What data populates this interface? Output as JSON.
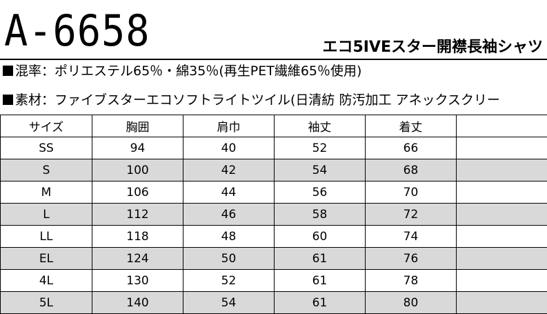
{
  "product": {
    "code": "A-6658",
    "name": "エコ5IVEスター開襟長袖シャツ"
  },
  "specs": {
    "blend": "■混率：ポリエステル65％・綿35％(再生PET繊維65％使用)",
    "material": "■素材：ファイブスターエコソフトライトツイル(日清紡 防汚加工 アネックスクリー"
  },
  "size_table": {
    "headers": [
      "サイズ",
      "胸囲",
      "肩巾",
      "袖丈",
      "着丈",
      ""
    ],
    "rows": [
      {
        "size": "SS",
        "chest": "94",
        "shoulder": "40",
        "sleeve": "52",
        "length": "66",
        "extra": "",
        "shaded": false
      },
      {
        "size": "S",
        "chest": "100",
        "shoulder": "42",
        "sleeve": "54",
        "length": "68",
        "extra": "",
        "shaded": true
      },
      {
        "size": "M",
        "chest": "106",
        "shoulder": "44",
        "sleeve": "56",
        "length": "70",
        "extra": "",
        "shaded": false
      },
      {
        "size": "L",
        "chest": "112",
        "shoulder": "46",
        "sleeve": "58",
        "length": "72",
        "extra": "",
        "shaded": true
      },
      {
        "size": "LL",
        "chest": "118",
        "shoulder": "48",
        "sleeve": "60",
        "length": "74",
        "extra": "",
        "shaded": false
      },
      {
        "size": "EL",
        "chest": "124",
        "shoulder": "50",
        "sleeve": "61",
        "length": "76",
        "extra": "",
        "shaded": true
      },
      {
        "size": "4L",
        "chest": "130",
        "shoulder": "52",
        "sleeve": "61",
        "length": "78",
        "extra": "",
        "shaded": false
      },
      {
        "size": "5L",
        "chest": "140",
        "shoulder": "54",
        "sleeve": "61",
        "length": "80",
        "extra": "",
        "shaded": true
      }
    ]
  },
  "colors": {
    "shaded_row": "#d9d9d9",
    "text": "#000000"
  }
}
